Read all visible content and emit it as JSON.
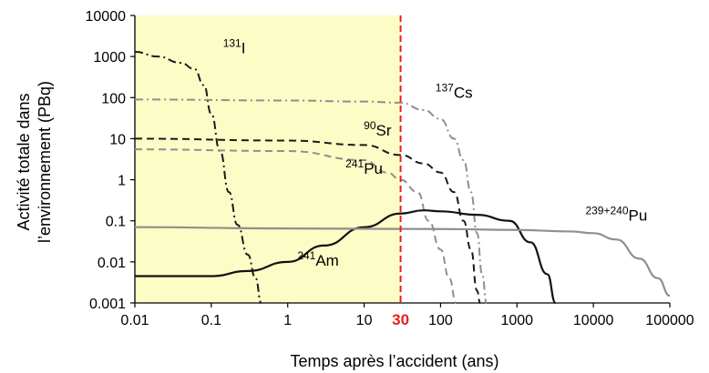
{
  "chart_data": {
    "type": "line",
    "xlabel": "Temps après l’accident (ans)",
    "ylabel_lines": [
      "Activité totale dans",
      "l’environnement (PBq)"
    ],
    "x_scale": "log",
    "y_scale": "log",
    "xlim": [
      0.01,
      100000
    ],
    "ylim": [
      0.001,
      10000
    ],
    "x_ticks": [
      "0.01",
      "0.1",
      "1",
      "10",
      "100",
      "1000",
      "10000",
      "100000"
    ],
    "y_ticks": [
      "0.001",
      "0.01",
      "0.1",
      "1",
      "10",
      "100",
      "1000",
      "10000"
    ],
    "grid": false,
    "highlight_region": {
      "x_from": 0.01,
      "x_to": 30,
      "color": "#fcfcc6"
    },
    "vertical_marker": {
      "x": 30,
      "label": "30",
      "color": "#e8201e"
    },
    "series": [
      {
        "name_sup": "131",
        "name_base": "I",
        "color": "#1a1a1a",
        "dash": "9 4 2 4",
        "width": 2,
        "label_at": [
          0.2,
          1200
        ],
        "points": [
          [
            0.01,
            1300
          ],
          [
            0.02,
            1000
          ],
          [
            0.04,
            700
          ],
          [
            0.06,
            500
          ],
          [
            0.08,
            200
          ],
          [
            0.1,
            40
          ],
          [
            0.13,
            5
          ],
          [
            0.17,
            0.5
          ],
          [
            0.22,
            0.08
          ],
          [
            0.3,
            0.015
          ],
          [
            0.38,
            0.004
          ],
          [
            0.45,
            0.001
          ]
        ]
      },
      {
        "name_sup": "137",
        "name_base": "Cs",
        "color": "#8f8f8f",
        "dash": "9 4 2 4",
        "width": 2,
        "label_at": [
          150,
          100
        ],
        "points": [
          [
            0.01,
            90
          ],
          [
            1,
            85
          ],
          [
            10,
            80
          ],
          [
            30,
            75
          ],
          [
            60,
            50
          ],
          [
            100,
            30
          ],
          [
            150,
            10
          ],
          [
            200,
            3
          ],
          [
            250,
            0.5
          ],
          [
            300,
            0.05
          ],
          [
            350,
            0.005
          ],
          [
            400,
            0.001
          ]
        ]
      },
      {
        "name_sup": "90",
        "name_base": "Sr",
        "color": "#1a1a1a",
        "dash": "8 5",
        "width": 2,
        "label_at": [
          15,
          12
        ],
        "points": [
          [
            0.01,
            10
          ],
          [
            1,
            9
          ],
          [
            10,
            7
          ],
          [
            30,
            4
          ],
          [
            60,
            2.5
          ],
          [
            100,
            1.5
          ],
          [
            150,
            0.5
          ],
          [
            200,
            0.1
          ],
          [
            250,
            0.02
          ],
          [
            300,
            0.002
          ],
          [
            330,
            0.001
          ]
        ]
      },
      {
        "name_sup": "241",
        "name_base": "Pu",
        "color": "#8f8f8f",
        "dash": "8 5",
        "width": 2,
        "label_at": [
          10,
          1.4
        ],
        "points": [
          [
            0.01,
            5.5
          ],
          [
            1,
            5
          ],
          [
            10,
            3
          ],
          [
            20,
            1.5
          ],
          [
            30,
            1
          ],
          [
            50,
            0.5
          ],
          [
            70,
            0.1
          ],
          [
            100,
            0.02
          ],
          [
            130,
            0.004
          ],
          [
            160,
            0.001
          ]
        ]
      },
      {
        "name_sup": "241",
        "name_base": "Am",
        "color": "#111111",
        "dash": "",
        "width": 2.2,
        "label_at": [
          2.5,
          0.008
        ],
        "points": [
          [
            0.01,
            0.0045
          ],
          [
            0.1,
            0.0045
          ],
          [
            0.3,
            0.006
          ],
          [
            1,
            0.01
          ],
          [
            3,
            0.025
          ],
          [
            10,
            0.07
          ],
          [
            30,
            0.15
          ],
          [
            60,
            0.18
          ],
          [
            100,
            0.17
          ],
          [
            300,
            0.14
          ],
          [
            800,
            0.1
          ],
          [
            1500,
            0.03
          ],
          [
            2500,
            0.005
          ],
          [
            3200,
            0.001
          ]
        ]
      },
      {
        "name_sup": "239+240",
        "name_base": "Pu",
        "color": "#8f8f8f",
        "dash": "",
        "width": 2.2,
        "label_at": [
          20000,
          0.1
        ],
        "points": [
          [
            0.01,
            0.07
          ],
          [
            1,
            0.065
          ],
          [
            100,
            0.063
          ],
          [
            1000,
            0.06
          ],
          [
            5000,
            0.055
          ],
          [
            10000,
            0.05
          ],
          [
            20000,
            0.035
          ],
          [
            40000,
            0.012
          ],
          [
            70000,
            0.004
          ],
          [
            100000,
            0.0015
          ]
        ]
      }
    ]
  }
}
